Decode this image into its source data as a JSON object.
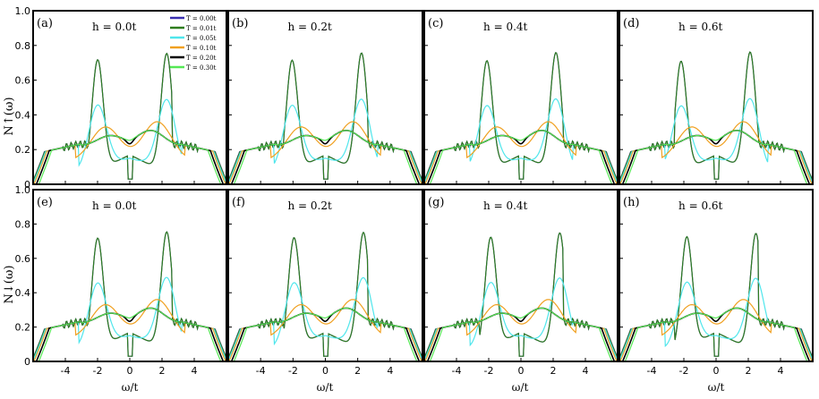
{
  "figure": {
    "ylabel_top": "N↑(ω)",
    "ylabel_bottom": "N↓(ω)",
    "xlabel": "ω/t"
  },
  "legend": {
    "entries": [
      {
        "label": "T = 0.00t",
        "color": "#3a2fb0"
      },
      {
        "label": "T = 0.01t",
        "color": "#2e7d1e"
      },
      {
        "label": "T = 0.05t",
        "color": "#4fe6ec"
      },
      {
        "label": "T = 0.10t",
        "color": "#f0a020"
      },
      {
        "label": "T = 0.20t",
        "color": "#000000"
      },
      {
        "label": "T = 0.30t",
        "color": "#55e855"
      }
    ]
  },
  "chart_data": [
    {
      "type": "line",
      "panel": "(a)",
      "title": "h = 0.0t",
      "spin": "up",
      "h": 0.0,
      "xlim": [
        -6,
        6
      ],
      "ylim": [
        0,
        1.0
      ],
      "yticks": [
        0,
        0.2,
        0.4,
        0.6,
        0.8,
        1.0
      ],
      "series_summary": [
        {
          "T": 0.0,
          "peaks": [
            [
              -2.0,
              0.7
            ],
            [
              2.3,
              0.75
            ]
          ],
          "value_at_0": 0.03
        },
        {
          "T": 0.01,
          "peaks": [
            [
              -2.0,
              0.69
            ],
            [
              2.3,
              0.74
            ]
          ],
          "value_at_0": 0.03
        },
        {
          "T": 0.05,
          "peaks": [
            [
              -2.0,
              0.46
            ],
            [
              2.3,
              0.5
            ]
          ],
          "value_at_0": 0.07
        },
        {
          "T": 0.1,
          "peaks": [
            [
              -1.5,
              0.34
            ],
            [
              1.7,
              0.37
            ]
          ],
          "value_at_0": 0.14
        },
        {
          "T": 0.2,
          "peaks": [
            [
              -1.2,
              0.28
            ],
            [
              1.2,
              0.31
            ]
          ],
          "value_at_0": 0.24
        },
        {
          "T": 0.3,
          "peaks": [
            [
              -1.0,
              0.28
            ],
            [
              1.2,
              0.3
            ]
          ],
          "value_at_0": 0.26
        }
      ]
    },
    {
      "type": "line",
      "panel": "(b)",
      "title": "h = 0.2t",
      "spin": "up",
      "h": 0.2,
      "xlim": [
        -6,
        6
      ],
      "ylim": [
        0,
        1.0
      ]
    },
    {
      "type": "line",
      "panel": "(c)",
      "title": "h = 0.4t",
      "spin": "up",
      "h": 0.4,
      "xlim": [
        -6,
        6
      ],
      "ylim": [
        0,
        1.0
      ]
    },
    {
      "type": "line",
      "panel": "(d)",
      "title": "h = 0.6t",
      "spin": "up",
      "h": 0.6,
      "xlim": [
        -6,
        6
      ],
      "ylim": [
        0,
        1.0
      ]
    },
    {
      "type": "line",
      "panel": "(e)",
      "title": "h = 0.0t",
      "spin": "down",
      "h": 0.0,
      "xlim": [
        -6,
        6
      ],
      "ylim": [
        0,
        1.0
      ],
      "xticks": [
        -4,
        -2,
        0,
        2,
        4
      ]
    },
    {
      "type": "line",
      "panel": "(f)",
      "title": "h = 0.2t",
      "spin": "down",
      "h": 0.2,
      "xlim": [
        -6,
        6
      ],
      "ylim": [
        0,
        1.0
      ],
      "xticks": [
        -4,
        -2,
        0,
        2,
        4
      ]
    },
    {
      "type": "line",
      "panel": "(g)",
      "title": "h = 0.4t",
      "spin": "down",
      "h": 0.4,
      "xlim": [
        -6,
        6
      ],
      "ylim": [
        0,
        1.0
      ],
      "xticks": [
        -4,
        -2,
        0,
        2,
        4
      ]
    },
    {
      "type": "line",
      "panel": "(h)",
      "title": "h = 0.6t",
      "spin": "down",
      "h": 0.6,
      "xlim": [
        -6,
        6
      ],
      "ylim": [
        0,
        1.0
      ],
      "xticks": [
        -4,
        -2,
        0,
        2,
        4
      ]
    }
  ]
}
